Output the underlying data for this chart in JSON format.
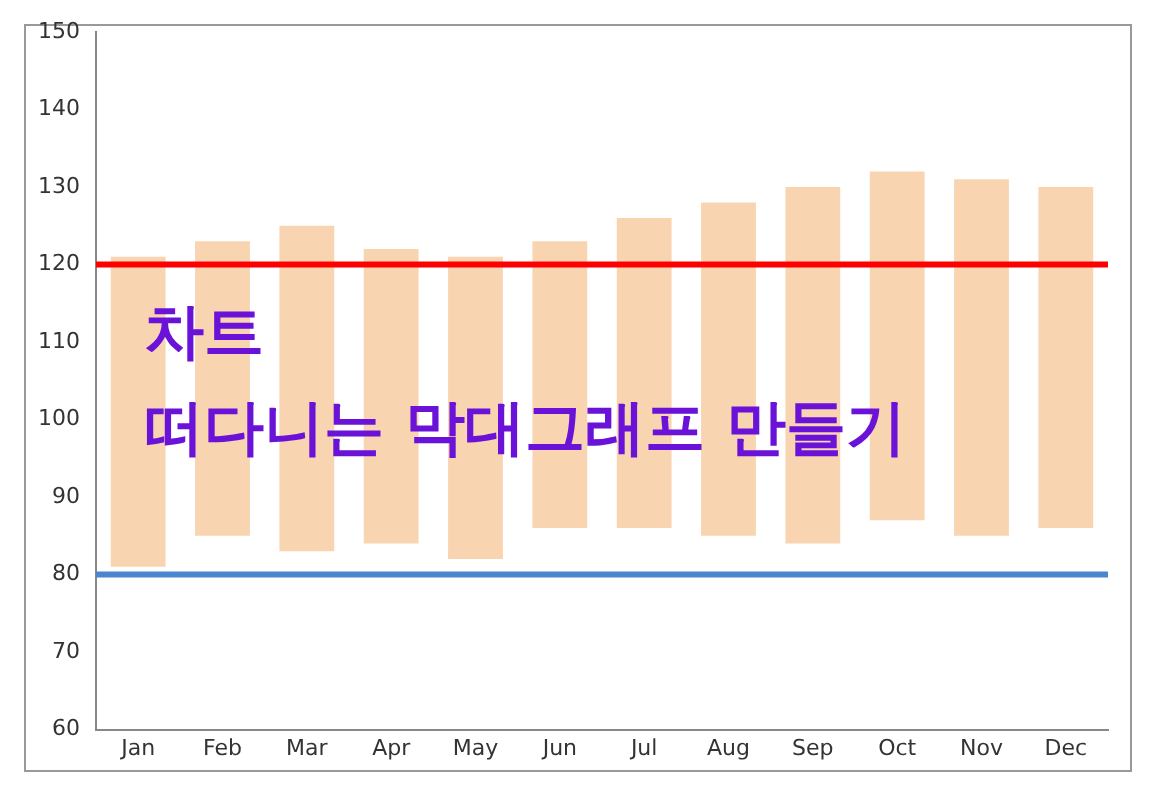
{
  "chart_data": {
    "type": "bar",
    "categories": [
      "Jan",
      "Feb",
      "Mar",
      "Apr",
      "May",
      "Jun",
      "Jul",
      "Aug",
      "Sep",
      "Oct",
      "Nov",
      "Dec"
    ],
    "base": [
      81,
      85,
      83,
      84,
      82,
      86,
      86,
      85,
      84,
      87,
      85,
      86
    ],
    "values": [
      40,
      38,
      42,
      38,
      39,
      37,
      40,
      43,
      46,
      45,
      46,
      44
    ],
    "color": "#f9d4b0",
    "ylim": [
      60,
      150
    ],
    "yticks": [
      60,
      70,
      80,
      90,
      100,
      110,
      120,
      130,
      140,
      150
    ],
    "grid": false,
    "legend": false,
    "ref_lines": [
      {
        "axis": "y",
        "value": 120,
        "color": "#ff0000"
      },
      {
        "axis": "y",
        "value": 80,
        "color": "#4a86d0"
      }
    ],
    "annotations": [
      "차트",
      "떠다니는 막대그래프 만들기"
    ]
  }
}
